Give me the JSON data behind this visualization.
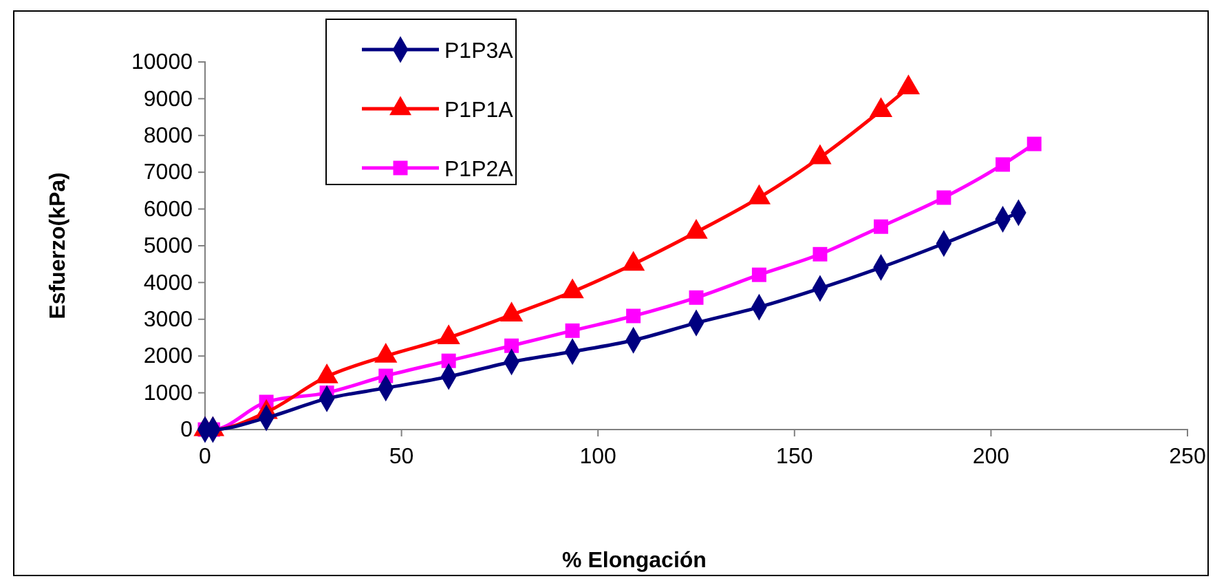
{
  "chart_data": {
    "type": "line",
    "xlabel": "% Elongación",
    "ylabel": "Esfuerzo(kPa)",
    "xlim": [
      0,
      250
    ],
    "xticks": [
      0,
      50,
      100,
      150,
      200,
      250
    ],
    "ylim": [
      0,
      10000
    ],
    "yticks": [
      0,
      1000,
      2000,
      3000,
      4000,
      5000,
      6000,
      7000,
      8000,
      9000,
      10000
    ],
    "grid": false,
    "legend": "top left",
    "series": [
      {
        "name": "P1P3A",
        "color": "#000080",
        "marker": "diamond",
        "x": [
          0,
          2,
          15.6,
          31,
          46,
          62,
          78,
          93.5,
          109,
          125,
          141,
          156.5,
          172,
          188,
          203,
          207
        ],
        "values": [
          0,
          0,
          320,
          840,
          1130,
          1440,
          1840,
          2120,
          2430,
          2900,
          3330,
          3840,
          4410,
          5060,
          5720,
          5900
        ]
      },
      {
        "name": "P1P1A",
        "color": "#ff0000",
        "marker": "triangle",
        "x": [
          0,
          2,
          15.6,
          31,
          46,
          62,
          78,
          93.5,
          109,
          125,
          141,
          156.5,
          172,
          179
        ],
        "values": [
          0,
          0,
          470,
          1440,
          2000,
          2500,
          3120,
          3750,
          4500,
          5370,
          6310,
          7400,
          8680,
          9300
        ]
      },
      {
        "name": "P1P2A",
        "color": "#ff00ff",
        "marker": "square",
        "x": [
          0,
          2,
          15.6,
          31,
          46,
          62,
          78,
          93.5,
          109,
          125,
          141,
          156.5,
          172,
          188,
          203,
          211
        ],
        "values": [
          0,
          0,
          750,
          1000,
          1460,
          1870,
          2280,
          2690,
          3090,
          3590,
          4210,
          4770,
          5520,
          6310,
          7210,
          7770
        ]
      }
    ]
  }
}
